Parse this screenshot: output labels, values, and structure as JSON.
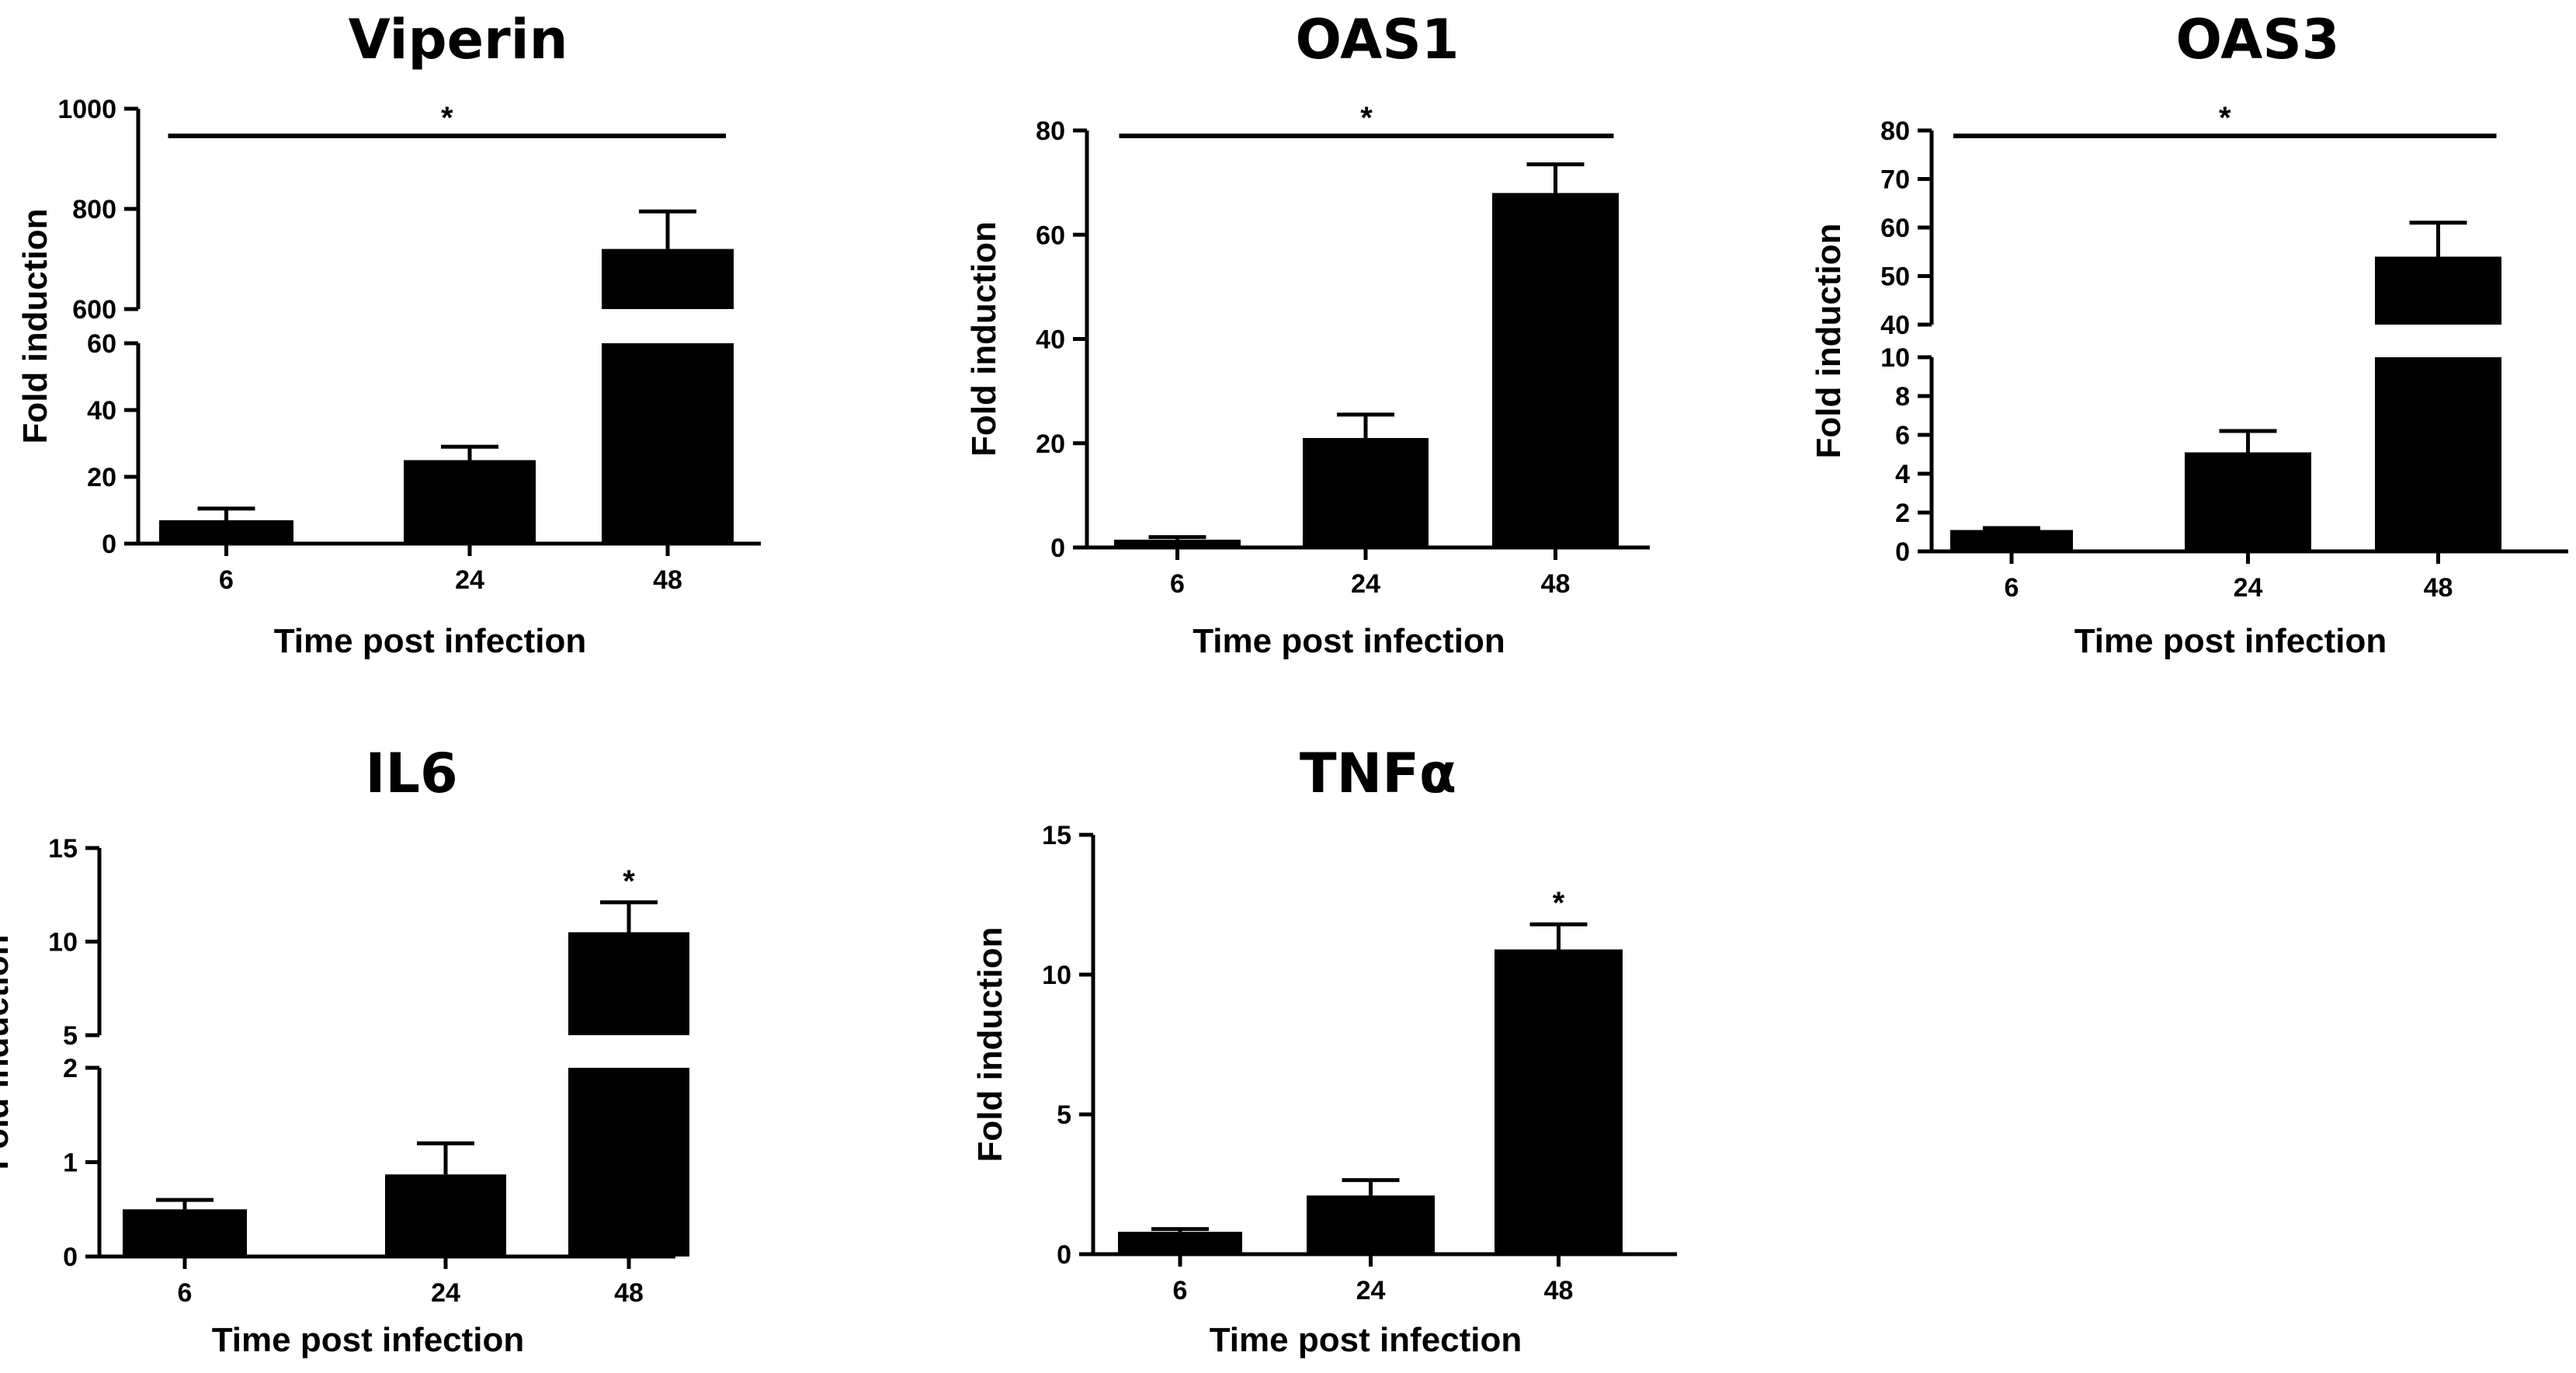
{
  "chart_data": [
    {
      "type": "bar",
      "title": "Viperin",
      "xlabel": "Time post infection",
      "ylabel": "Fold induction",
      "categories": [
        "6",
        "24",
        "48"
      ],
      "values": [
        7,
        25,
        720
      ],
      "errors": [
        3.5,
        4,
        75
      ],
      "broken_axis": {
        "lower": [
          0,
          60
        ],
        "upper": [
          600,
          1000
        ]
      },
      "lower_ticks": [
        "0",
        "20",
        "40",
        "60"
      ],
      "upper_ticks": [
        "600",
        "800",
        "1000"
      ],
      "significance": {
        "type": "bar",
        "label": "*"
      }
    },
    {
      "type": "bar",
      "title": "OAS1",
      "xlabel": "Time post infection",
      "ylabel": "Fold induction",
      "categories": [
        "6",
        "24",
        "48"
      ],
      "values": [
        1.5,
        21,
        68
      ],
      "errors": [
        0.5,
        4.5,
        5.5
      ],
      "ylim": [
        0,
        80
      ],
      "ticks": [
        "0",
        "20",
        "40",
        "60",
        "80"
      ],
      "significance": {
        "type": "bar",
        "label": "*"
      }
    },
    {
      "type": "bar",
      "title": "OAS3",
      "xlabel": "Time post infection",
      "ylabel": "Fold induction",
      "categories": [
        "6",
        "24",
        "48"
      ],
      "values": [
        1.1,
        5.1,
        54
      ],
      "errors": [
        0.1,
        1.1,
        7
      ],
      "broken_axis": {
        "lower": [
          0,
          10
        ],
        "upper": [
          40,
          80
        ]
      },
      "lower_ticks": [
        "0",
        "2",
        "4",
        "6",
        "8",
        "10"
      ],
      "upper_ticks": [
        "40",
        "50",
        "60",
        "70",
        "80"
      ],
      "significance": {
        "type": "bar",
        "label": "*"
      }
    },
    {
      "type": "bar",
      "title": "IL6",
      "xlabel": "Time post infection",
      "ylabel": "Fold induction",
      "categories": [
        "6",
        "24",
        "48"
      ],
      "values": [
        0.5,
        0.87,
        10.5
      ],
      "errors": [
        0.1,
        0.33,
        1.6
      ],
      "broken_axis": {
        "lower": [
          0,
          2
        ],
        "upper": [
          5,
          15
        ]
      },
      "lower_ticks": [
        "0",
        "1",
        "2"
      ],
      "upper_ticks": [
        "5",
        "10",
        "15"
      ],
      "significance": {
        "type": "star",
        "label": "*",
        "category": "48"
      }
    },
    {
      "type": "bar",
      "title": "TNFα",
      "xlabel": "Time post infection",
      "ylabel": "Fold induction",
      "categories": [
        "6",
        "24",
        "48"
      ],
      "values": [
        0.8,
        2.1,
        10.9
      ],
      "errors": [
        0.1,
        0.55,
        0.9
      ],
      "ylim": [
        0,
        15
      ],
      "ticks": [
        "0",
        "5",
        "10",
        "15"
      ],
      "significance": {
        "type": "star",
        "label": "*",
        "category": "48"
      }
    }
  ]
}
